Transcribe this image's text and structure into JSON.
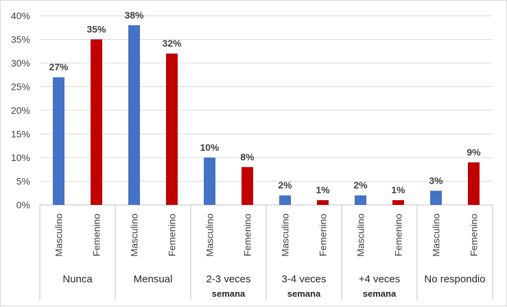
{
  "chart_data": {
    "type": "bar",
    "ylim": [
      0,
      40
    ],
    "yticks": [
      "0%",
      "5%",
      "10%",
      "15%",
      "20%",
      "25%",
      "30%",
      "35%",
      "40%"
    ],
    "ytick_values": [
      0,
      5,
      10,
      15,
      20,
      25,
      30,
      35,
      40
    ],
    "grid": true,
    "groups": [
      {
        "label": "Nunca",
        "label_line2": ""
      },
      {
        "label": "Mensual",
        "label_line2": ""
      },
      {
        "label": "2-3 veces",
        "label_line2": "semana"
      },
      {
        "label": "3-4 veces",
        "label_line2": "semana"
      },
      {
        "label": "+4 veces",
        "label_line2": "semana"
      },
      {
        "label": "No respondio",
        "label_line2": ""
      }
    ],
    "subcategories": [
      "Masculino",
      "Femenino"
    ],
    "series": [
      {
        "values": [
          27,
          38,
          10,
          2,
          2,
          3
        ],
        "labels": [
          "27%",
          "38%",
          "10%",
          "2%",
          "2%",
          "3%"
        ],
        "color": "#4472c4"
      },
      {
        "values": [
          35,
          32,
          8,
          1,
          1,
          9
        ],
        "labels": [
          "35%",
          "32%",
          "8%",
          "1%",
          "1%",
          "9%"
        ],
        "color": "#c00000"
      }
    ],
    "gridline_color": "#d9d9d9",
    "axis_color": "#bfbfbf"
  }
}
